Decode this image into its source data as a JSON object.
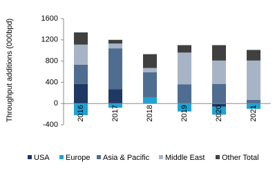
{
  "chart_data": {
    "type": "stacked_bar",
    "y_label": "Throughput additions (000bpd)",
    "categories": [
      "2016",
      "2017",
      "2018",
      "2019",
      "2020",
      "2021"
    ],
    "series": [
      {
        "name": "USA",
        "color": "#1f3864",
        "values": [
          370,
          270,
          0,
          0,
          -60,
          0
        ]
      },
      {
        "name": "Europe",
        "color": "#1fa2d6",
        "values": [
          -220,
          -80,
          120,
          -150,
          -150,
          -100
        ]
      },
      {
        "name": "Asia & Pacific",
        "color": "#4f6d91",
        "values": [
          360,
          770,
          470,
          360,
          370,
          70
        ]
      },
      {
        "name": "Middle East",
        "color": "#a7b4c6",
        "values": [
          380,
          90,
          80,
          600,
          440,
          740
        ]
      },
      {
        "name": "Other Total",
        "color": "#404040",
        "values": [
          230,
          70,
          260,
          140,
          290,
          200
        ]
      }
    ],
    "ylim": [
      -400,
      1600
    ],
    "yticks": [
      -400,
      0,
      400,
      800,
      1200,
      1600
    ]
  }
}
